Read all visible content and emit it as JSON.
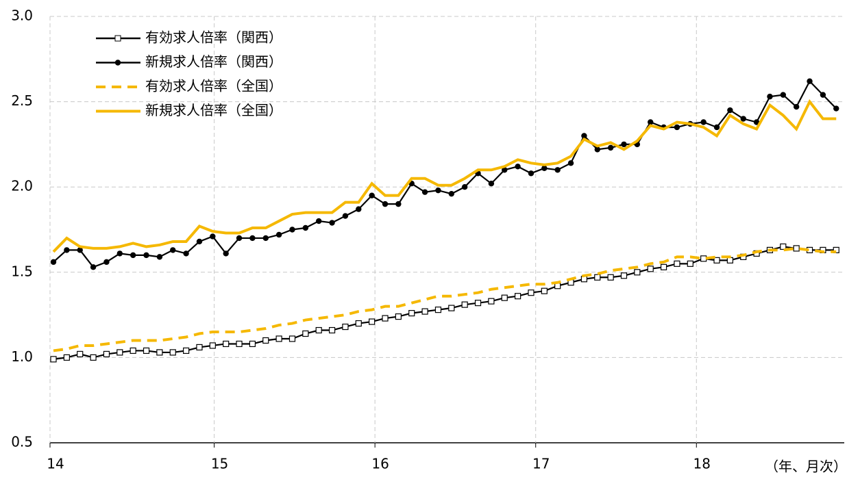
{
  "chart_data": {
    "type": "line",
    "categories": [
      "14",
      null,
      null,
      null,
      null,
      null,
      null,
      null,
      null,
      null,
      null,
      null,
      "15",
      null,
      null,
      null,
      null,
      null,
      null,
      null,
      null,
      null,
      null,
      null,
      "16",
      null,
      null,
      null,
      null,
      null,
      null,
      null,
      null,
      null,
      null,
      null,
      "17",
      null,
      null,
      null,
      null,
      null,
      null,
      null,
      null,
      null,
      null,
      null,
      "18",
      null,
      null,
      null,
      null,
      null,
      null,
      null,
      null,
      null,
      null,
      null
    ],
    "x_label": "（年、月次）",
    "ylim": [
      0.5,
      3.0
    ],
    "yticks": [
      0.5,
      {
        "value": 1,
        "label": "1.0"
      },
      1.5,
      {
        "value": 2,
        "label": "2.0"
      },
      2.5,
      {
        "value": 3,
        "label": "3.0"
      }
    ],
    "grid": true,
    "legend": "upper-left",
    "series": [
      {
        "name": "有効求人倍率（関西）",
        "color": "#000000",
        "marker": "square",
        "dashed": false,
        "values": [
          0.99,
          1.0,
          1.02,
          1.0,
          1.02,
          1.03,
          1.04,
          1.04,
          1.03,
          1.03,
          1.04,
          1.06,
          1.07,
          1.08,
          1.08,
          1.08,
          1.1,
          1.11,
          1.11,
          1.14,
          1.16,
          1.16,
          1.18,
          1.2,
          1.21,
          1.23,
          1.24,
          1.26,
          1.27,
          1.28,
          1.29,
          1.31,
          1.32,
          1.33,
          1.35,
          1.36,
          1.38,
          1.39,
          1.42,
          1.44,
          1.46,
          1.47,
          1.47,
          1.48,
          1.5,
          1.52,
          1.53,
          1.55,
          1.55,
          1.58,
          1.57,
          1.57,
          1.59,
          1.61,
          1.63,
          1.65,
          1.64,
          1.63,
          1.63,
          1.63
        ]
      },
      {
        "name": "新規求人倍率（関西）",
        "color": "#000000",
        "marker": "circle",
        "dashed": false,
        "values": [
          1.56,
          1.63,
          1.63,
          1.53,
          1.56,
          1.61,
          1.6,
          1.6,
          1.59,
          1.63,
          1.61,
          1.68,
          1.71,
          1.61,
          1.7,
          1.7,
          1.7,
          1.72,
          1.75,
          1.76,
          1.8,
          1.79,
          1.83,
          1.87,
          1.95,
          1.9,
          1.9,
          2.02,
          1.97,
          1.98,
          1.96,
          2.0,
          2.08,
          2.02,
          2.1,
          2.12,
          2.08,
          2.11,
          2.1,
          2.14,
          2.3,
          2.22,
          2.23,
          2.25,
          2.25,
          2.38,
          2.35,
          2.35,
          2.37,
          2.38,
          2.35,
          2.45,
          2.4,
          2.38,
          2.53,
          2.54,
          2.47,
          2.62,
          2.54,
          2.46
        ]
      },
      {
        "name": "有効求人倍率（全国）",
        "color": "#f5b800",
        "marker": null,
        "dashed": true,
        "values": [
          1.04,
          1.05,
          1.07,
          1.07,
          1.08,
          1.09,
          1.1,
          1.1,
          1.1,
          1.11,
          1.12,
          1.14,
          1.15,
          1.15,
          1.15,
          1.16,
          1.17,
          1.19,
          1.2,
          1.22,
          1.23,
          1.24,
          1.25,
          1.27,
          1.28,
          1.3,
          1.3,
          1.32,
          1.34,
          1.36,
          1.36,
          1.37,
          1.38,
          1.4,
          1.41,
          1.42,
          1.43,
          1.43,
          1.44,
          1.46,
          1.48,
          1.49,
          1.51,
          1.52,
          1.53,
          1.55,
          1.56,
          1.59,
          1.59,
          1.58,
          1.59,
          1.59,
          1.6,
          1.62,
          1.63,
          1.63,
          1.64,
          1.63,
          1.62,
          1.62
        ]
      },
      {
        "name": "新規求人倍率（全国）",
        "color": "#f5b800",
        "marker": null,
        "dashed": false,
        "values": [
          1.62,
          1.7,
          1.65,
          1.64,
          1.64,
          1.65,
          1.67,
          1.65,
          1.66,
          1.68,
          1.68,
          1.77,
          1.74,
          1.73,
          1.73,
          1.76,
          1.76,
          1.8,
          1.84,
          1.85,
          1.85,
          1.85,
          1.91,
          1.91,
          2.02,
          1.95,
          1.95,
          2.05,
          2.05,
          2.01,
          2.01,
          2.05,
          2.1,
          2.1,
          2.12,
          2.16,
          2.14,
          2.13,
          2.14,
          2.18,
          2.28,
          2.24,
          2.26,
          2.22,
          2.27,
          2.36,
          2.34,
          2.38,
          2.37,
          2.35,
          2.3,
          2.42,
          2.37,
          2.34,
          2.48,
          2.42,
          2.34,
          2.5,
          2.4,
          2.4
        ]
      }
    ]
  }
}
